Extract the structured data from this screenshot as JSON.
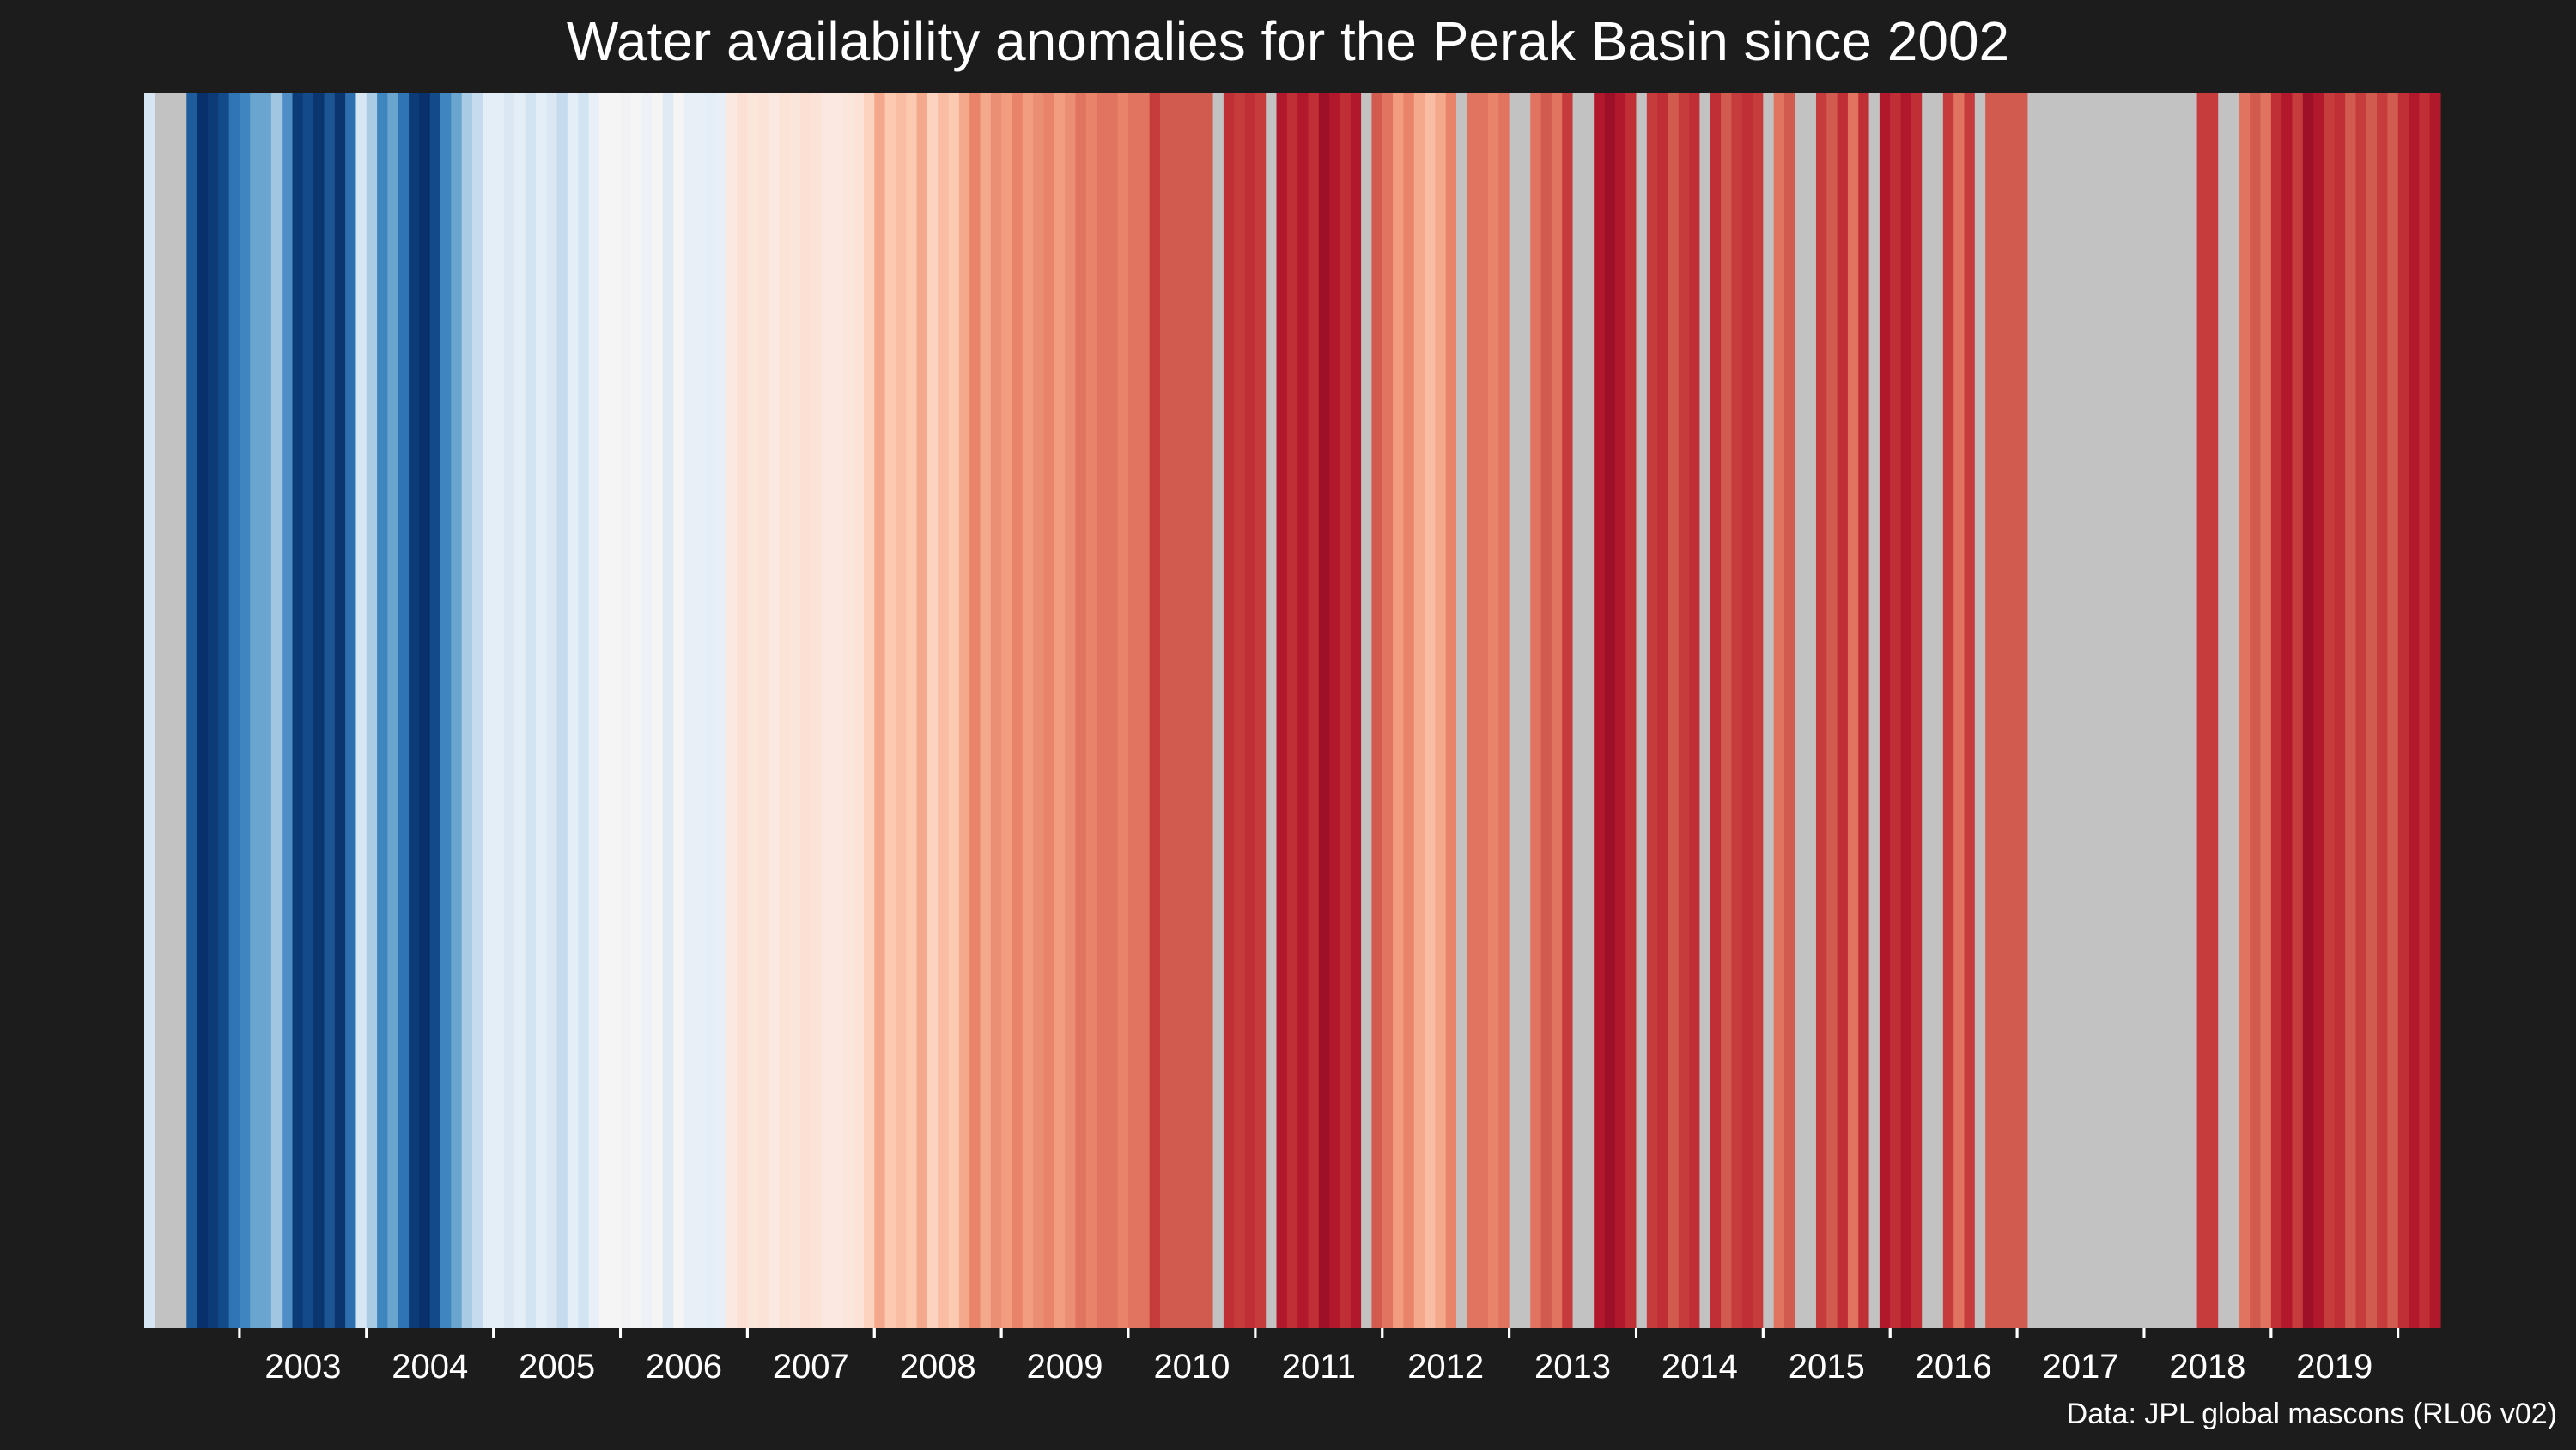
{
  "chart_data": {
    "type": "heatmap",
    "title": "Water availability anomalies for the Perak Basin since 2002",
    "caption": "Data: JPL global mascons (RL06 v02)",
    "xlabel": "",
    "ylabel": "",
    "x_start": "2002-04",
    "x_end": "2020-05",
    "x_ticks": [
      "2003",
      "2004",
      "2005",
      "2006",
      "2007",
      "2008",
      "2009",
      "2010",
      "2011",
      "2012",
      "2013",
      "2014",
      "2015",
      "2016",
      "2017",
      "2018",
      "2019"
    ],
    "missing_color": "#c2c2c2",
    "palette_low": "#08306b",
    "palette_high": "#8b0f23",
    "grid": false,
    "legend": "none",
    "stripes": [
      {
        "start": "2002-04",
        "end": "2002-05",
        "color": "#d6e6f3"
      },
      {
        "start": "2002-05",
        "end": "2002-06",
        "color": "#c2c2c2"
      },
      {
        "start": "2002-06",
        "end": "2002-08",
        "color": "#c2c2c2"
      },
      {
        "start": "2002-08",
        "end": "2002-09",
        "color": "#1f5c9c"
      },
      {
        "start": "2002-09",
        "end": "2002-10",
        "color": "#08306b"
      },
      {
        "start": "2002-10",
        "end": "2002-11",
        "color": "#0c3b78"
      },
      {
        "start": "2002-11",
        "end": "2002-12",
        "color": "#134a8a"
      },
      {
        "start": "2002-12",
        "end": "2003-01",
        "color": "#2f74b5"
      },
      {
        "start": "2003-01",
        "end": "2003-02",
        "color": "#3f86c1"
      },
      {
        "start": "2003-02",
        "end": "2003-03",
        "color": "#6aa5d0"
      },
      {
        "start": "2003-03",
        "end": "2003-04",
        "color": "#6aa5d0"
      },
      {
        "start": "2003-04",
        "end": "2003-05",
        "color": "#a0c6e2"
      },
      {
        "start": "2003-05",
        "end": "2003-06",
        "color": "#4f8fc6"
      },
      {
        "start": "2003-06",
        "end": "2003-07",
        "color": "#0c3b78"
      },
      {
        "start": "2003-07",
        "end": "2003-08",
        "color": "#134a8a"
      },
      {
        "start": "2003-08",
        "end": "2003-09",
        "color": "#0a356f"
      },
      {
        "start": "2003-09",
        "end": "2003-10",
        "color": "#1b5593"
      },
      {
        "start": "2003-10",
        "end": "2003-11",
        "color": "#0a356f"
      },
      {
        "start": "2003-11",
        "end": "2003-12",
        "color": "#2e6fb0"
      },
      {
        "start": "2003-12",
        "end": "2004-01",
        "color": "#d6e6f3"
      },
      {
        "start": "2004-01",
        "end": "2004-02",
        "color": "#a9cbe4"
      },
      {
        "start": "2004-02",
        "end": "2004-03",
        "color": "#3f86c1"
      },
      {
        "start": "2004-03",
        "end": "2004-04",
        "color": "#6aa5d0"
      },
      {
        "start": "2004-04",
        "end": "2004-05",
        "color": "#2f74b5"
      },
      {
        "start": "2004-05",
        "end": "2004-06",
        "color": "#0c3b78"
      },
      {
        "start": "2004-06",
        "end": "2004-07",
        "color": "#08306b"
      },
      {
        "start": "2004-07",
        "end": "2004-08",
        "color": "#134a8a"
      },
      {
        "start": "2004-08",
        "end": "2004-09",
        "color": "#3f86c1"
      },
      {
        "start": "2004-09",
        "end": "2004-10",
        "color": "#6aa5d0"
      },
      {
        "start": "2004-10",
        "end": "2004-11",
        "color": "#a9cbe4"
      },
      {
        "start": "2004-11",
        "end": "2004-12",
        "color": "#c6dcee"
      },
      {
        "start": "2004-12",
        "end": "2005-01",
        "color": "#e4eef6"
      },
      {
        "start": "2005-01",
        "end": "2005-02",
        "color": "#e4eef6"
      },
      {
        "start": "2005-02",
        "end": "2005-03",
        "color": "#dbe8f3"
      },
      {
        "start": "2005-03",
        "end": "2005-04",
        "color": "#e4eef6"
      },
      {
        "start": "2005-04",
        "end": "2005-05",
        "color": "#d2e3f1"
      },
      {
        "start": "2005-05",
        "end": "2005-06",
        "color": "#e4eef6"
      },
      {
        "start": "2005-06",
        "end": "2005-07",
        "color": "#dbe8f3"
      },
      {
        "start": "2005-07",
        "end": "2005-08",
        "color": "#c6dcee"
      },
      {
        "start": "2005-08",
        "end": "2005-09",
        "color": "#e4eef6"
      },
      {
        "start": "2005-09",
        "end": "2005-10",
        "color": "#d2e3f1"
      },
      {
        "start": "2005-10",
        "end": "2005-11",
        "color": "#e8eff6"
      },
      {
        "start": "2005-11",
        "end": "2005-12",
        "color": "#f5f5f5"
      },
      {
        "start": "2005-12",
        "end": "2006-01",
        "color": "#f5f5f5"
      },
      {
        "start": "2006-01",
        "end": "2006-02",
        "color": "#f2f2f4"
      },
      {
        "start": "2006-02",
        "end": "2006-03",
        "color": "#f5f5f5"
      },
      {
        "start": "2006-03",
        "end": "2006-04",
        "color": "#eef2f6"
      },
      {
        "start": "2006-04",
        "end": "2006-05",
        "color": "#f5f5f5"
      },
      {
        "start": "2006-05",
        "end": "2006-06",
        "color": "#dfeaf4"
      },
      {
        "start": "2006-06",
        "end": "2006-07",
        "color": "#f5f5f5"
      },
      {
        "start": "2006-07",
        "end": "2006-08",
        "color": "#e8eff6"
      },
      {
        "start": "2006-08",
        "end": "2006-09",
        "color": "#e8eff6"
      },
      {
        "start": "2006-09",
        "end": "2006-10",
        "color": "#e4eef6"
      },
      {
        "start": "2006-10",
        "end": "2006-11",
        "color": "#e8eff6"
      },
      {
        "start": "2006-11",
        "end": "2006-12",
        "color": "#fbe9e1"
      },
      {
        "start": "2006-12",
        "end": "2007-01",
        "color": "#fce0d3"
      },
      {
        "start": "2007-01",
        "end": "2007-02",
        "color": "#fbe6dc"
      },
      {
        "start": "2007-02",
        "end": "2007-03",
        "color": "#fce3d8"
      },
      {
        "start": "2007-03",
        "end": "2007-04",
        "color": "#fbe9e1"
      },
      {
        "start": "2007-04",
        "end": "2007-05",
        "color": "#fce3d8"
      },
      {
        "start": "2007-05",
        "end": "2007-06",
        "color": "#fbe6dc"
      },
      {
        "start": "2007-06",
        "end": "2007-07",
        "color": "#fce0d3"
      },
      {
        "start": "2007-07",
        "end": "2007-08",
        "color": "#fce3d8"
      },
      {
        "start": "2007-08",
        "end": "2007-09",
        "color": "#fbe9e1"
      },
      {
        "start": "2007-09",
        "end": "2007-10",
        "color": "#fbe9e1"
      },
      {
        "start": "2007-10",
        "end": "2007-11",
        "color": "#fbe6dc"
      },
      {
        "start": "2007-11",
        "end": "2007-12",
        "color": "#fce3d8"
      },
      {
        "start": "2007-12",
        "end": "2008-01",
        "color": "#fcd3bf"
      },
      {
        "start": "2008-01",
        "end": "2008-02",
        "color": "#f4a98c"
      },
      {
        "start": "2008-02",
        "end": "2008-03",
        "color": "#fcc9b1"
      },
      {
        "start": "2008-03",
        "end": "2008-04",
        "color": "#f8bda2"
      },
      {
        "start": "2008-04",
        "end": "2008-05",
        "color": "#fcc9b1"
      },
      {
        "start": "2008-05",
        "end": "2008-06",
        "color": "#f4a98c"
      },
      {
        "start": "2008-06",
        "end": "2008-07",
        "color": "#fcd3bf"
      },
      {
        "start": "2008-07",
        "end": "2008-08",
        "color": "#f8bda2"
      },
      {
        "start": "2008-08",
        "end": "2008-09",
        "color": "#fcc9b1"
      },
      {
        "start": "2008-09",
        "end": "2008-10",
        "color": "#f4a98c"
      },
      {
        "start": "2008-10",
        "end": "2008-11",
        "color": "#e9836a"
      },
      {
        "start": "2008-11",
        "end": "2008-12",
        "color": "#f4a98c"
      },
      {
        "start": "2008-12",
        "end": "2009-01",
        "color": "#ea8f74"
      },
      {
        "start": "2009-01",
        "end": "2009-02",
        "color": "#f29c80"
      },
      {
        "start": "2009-02",
        "end": "2009-03",
        "color": "#e9836a"
      },
      {
        "start": "2009-03",
        "end": "2009-04",
        "color": "#f29c80"
      },
      {
        "start": "2009-04",
        "end": "2009-05",
        "color": "#ea8f74"
      },
      {
        "start": "2009-05",
        "end": "2009-06",
        "color": "#e9836a"
      },
      {
        "start": "2009-06",
        "end": "2009-07",
        "color": "#f29c80"
      },
      {
        "start": "2009-07",
        "end": "2009-08",
        "color": "#ea8f74"
      },
      {
        "start": "2009-08",
        "end": "2009-09",
        "color": "#e07460"
      },
      {
        "start": "2009-09",
        "end": "2009-10",
        "color": "#e9836a"
      },
      {
        "start": "2009-10",
        "end": "2009-11",
        "color": "#e07460"
      },
      {
        "start": "2009-11",
        "end": "2009-12",
        "color": "#e07460"
      },
      {
        "start": "2009-12",
        "end": "2010-01",
        "color": "#e9836a"
      },
      {
        "start": "2010-01",
        "end": "2010-02",
        "color": "#e07460"
      },
      {
        "start": "2010-02",
        "end": "2010-03",
        "color": "#e07460"
      },
      {
        "start": "2010-03",
        "end": "2010-04",
        "color": "#c63c3c"
      },
      {
        "start": "2010-04",
        "end": "2010-05",
        "color": "#d25b4f"
      },
      {
        "start": "2010-05",
        "end": "2010-06",
        "color": "#d25b4f"
      },
      {
        "start": "2010-06",
        "end": "2010-07",
        "color": "#d25b4f"
      },
      {
        "start": "2010-07",
        "end": "2010-08",
        "color": "#d25b4f"
      },
      {
        "start": "2010-08",
        "end": "2010-09",
        "color": "#d25b4f"
      },
      {
        "start": "2010-09",
        "end": "2010-10",
        "color": "#c2c2c2"
      },
      {
        "start": "2010-10",
        "end": "2010-11",
        "color": "#c02f36"
      },
      {
        "start": "2010-11",
        "end": "2010-12",
        "color": "#c63c3c"
      },
      {
        "start": "2010-12",
        "end": "2011-01",
        "color": "#c02f36"
      },
      {
        "start": "2011-01",
        "end": "2011-02",
        "color": "#c63c3c"
      },
      {
        "start": "2011-02",
        "end": "2011-03",
        "color": "#c2c2c2"
      },
      {
        "start": "2011-03",
        "end": "2011-04",
        "color": "#b2182b"
      },
      {
        "start": "2011-04",
        "end": "2011-05",
        "color": "#c02f36"
      },
      {
        "start": "2011-05",
        "end": "2011-06",
        "color": "#b2182b"
      },
      {
        "start": "2011-06",
        "end": "2011-07",
        "color": "#c02f36"
      },
      {
        "start": "2011-07",
        "end": "2011-08",
        "color": "#9e1027"
      },
      {
        "start": "2011-08",
        "end": "2011-09",
        "color": "#b2182b"
      },
      {
        "start": "2011-09",
        "end": "2011-10",
        "color": "#c02f36"
      },
      {
        "start": "2011-10",
        "end": "2011-11",
        "color": "#b2182b"
      },
      {
        "start": "2011-11",
        "end": "2011-12",
        "color": "#c2c2c2"
      },
      {
        "start": "2011-12",
        "end": "2012-01",
        "color": "#d25b4f"
      },
      {
        "start": "2012-01",
        "end": "2012-02",
        "color": "#e07460"
      },
      {
        "start": "2012-02",
        "end": "2012-03",
        "color": "#f29c80"
      },
      {
        "start": "2012-03",
        "end": "2012-04",
        "color": "#e9836a"
      },
      {
        "start": "2012-04",
        "end": "2012-05",
        "color": "#f4a98c"
      },
      {
        "start": "2012-05",
        "end": "2012-06",
        "color": "#f8bda2"
      },
      {
        "start": "2012-06",
        "end": "2012-07",
        "color": "#f4a98c"
      },
      {
        "start": "2012-07",
        "end": "2012-08",
        "color": "#e9836a"
      },
      {
        "start": "2012-08",
        "end": "2012-09",
        "color": "#c2c2c2"
      },
      {
        "start": "2012-09",
        "end": "2012-10",
        "color": "#e07460"
      },
      {
        "start": "2012-10",
        "end": "2012-11",
        "color": "#e07460"
      },
      {
        "start": "2012-11",
        "end": "2012-12",
        "color": "#e9836a"
      },
      {
        "start": "2012-12",
        "end": "2013-01",
        "color": "#e07460"
      },
      {
        "start": "2013-01",
        "end": "2013-02",
        "color": "#c2c2c2"
      },
      {
        "start": "2013-02",
        "end": "2013-03",
        "color": "#c2c2c2"
      },
      {
        "start": "2013-03",
        "end": "2013-04",
        "color": "#e07460"
      },
      {
        "start": "2013-04",
        "end": "2013-05",
        "color": "#d25b4f"
      },
      {
        "start": "2013-05",
        "end": "2013-06",
        "color": "#e07460"
      },
      {
        "start": "2013-06",
        "end": "2013-07",
        "color": "#c63c3c"
      },
      {
        "start": "2013-07",
        "end": "2013-08",
        "color": "#c2c2c2"
      },
      {
        "start": "2013-08",
        "end": "2013-09",
        "color": "#c2c2c2"
      },
      {
        "start": "2013-09",
        "end": "2013-10",
        "color": "#b2182b"
      },
      {
        "start": "2013-10",
        "end": "2013-11",
        "color": "#9e1027"
      },
      {
        "start": "2013-11",
        "end": "2013-12",
        "color": "#b2182b"
      },
      {
        "start": "2013-12",
        "end": "2014-01",
        "color": "#c02f36"
      },
      {
        "start": "2014-01",
        "end": "2014-02",
        "color": "#c2c2c2"
      },
      {
        "start": "2014-02",
        "end": "2014-03",
        "color": "#c63c3c"
      },
      {
        "start": "2014-03",
        "end": "2014-04",
        "color": "#c02f36"
      },
      {
        "start": "2014-04",
        "end": "2014-05",
        "color": "#d25b4f"
      },
      {
        "start": "2014-05",
        "end": "2014-06",
        "color": "#c63c3c"
      },
      {
        "start": "2014-06",
        "end": "2014-07",
        "color": "#c02f36"
      },
      {
        "start": "2014-07",
        "end": "2014-08",
        "color": "#c2c2c2"
      },
      {
        "start": "2014-08",
        "end": "2014-09",
        "color": "#c02f36"
      },
      {
        "start": "2014-09",
        "end": "2014-10",
        "color": "#d25b4f"
      },
      {
        "start": "2014-10",
        "end": "2014-11",
        "color": "#c63c3c"
      },
      {
        "start": "2014-11",
        "end": "2014-12",
        "color": "#c02f36"
      },
      {
        "start": "2014-12",
        "end": "2015-01",
        "color": "#c63c3c"
      },
      {
        "start": "2015-01",
        "end": "2015-02",
        "color": "#c2c2c2"
      },
      {
        "start": "2015-02",
        "end": "2015-03",
        "color": "#e07460"
      },
      {
        "start": "2015-03",
        "end": "2015-04",
        "color": "#d25b4f"
      },
      {
        "start": "2015-04",
        "end": "2015-05",
        "color": "#c2c2c2"
      },
      {
        "start": "2015-05",
        "end": "2015-06",
        "color": "#c2c2c2"
      },
      {
        "start": "2015-06",
        "end": "2015-07",
        "color": "#c63c3c"
      },
      {
        "start": "2015-07",
        "end": "2015-08",
        "color": "#d25b4f"
      },
      {
        "start": "2015-08",
        "end": "2015-09",
        "color": "#c02f36"
      },
      {
        "start": "2015-09",
        "end": "2015-10",
        "color": "#e07460"
      },
      {
        "start": "2015-10",
        "end": "2015-11",
        "color": "#c02f36"
      },
      {
        "start": "2015-11",
        "end": "2015-12",
        "color": "#c2c2c2"
      },
      {
        "start": "2015-12",
        "end": "2016-01",
        "color": "#b2182b"
      },
      {
        "start": "2016-01",
        "end": "2016-02",
        "color": "#c02f36"
      },
      {
        "start": "2016-02",
        "end": "2016-03",
        "color": "#b2182b"
      },
      {
        "start": "2016-03",
        "end": "2016-04",
        "color": "#c02f36"
      },
      {
        "start": "2016-04",
        "end": "2016-05",
        "color": "#c2c2c2"
      },
      {
        "start": "2016-05",
        "end": "2016-06",
        "color": "#c2c2c2"
      },
      {
        "start": "2016-06",
        "end": "2016-07",
        "color": "#c63c3c"
      },
      {
        "start": "2016-07",
        "end": "2016-08",
        "color": "#e07460"
      },
      {
        "start": "2016-08",
        "end": "2016-09",
        "color": "#c63c3c"
      },
      {
        "start": "2016-09",
        "end": "2016-10",
        "color": "#c2c2c2"
      },
      {
        "start": "2016-10",
        "end": "2016-11",
        "color": "#d25b4f"
      },
      {
        "start": "2016-11",
        "end": "2017-02",
        "color": "#d25b4f"
      },
      {
        "start": "2017-02",
        "end": "2018-06",
        "color": "#c2c2c2"
      },
      {
        "start": "2018-06",
        "end": "2018-08",
        "color": "#c63c3c"
      },
      {
        "start": "2018-08",
        "end": "2018-10",
        "color": "#c2c2c2"
      },
      {
        "start": "2018-10",
        "end": "2018-11",
        "color": "#e07460"
      },
      {
        "start": "2018-11",
        "end": "2018-12",
        "color": "#d25b4f"
      },
      {
        "start": "2018-12",
        "end": "2019-01",
        "color": "#e07460"
      },
      {
        "start": "2019-01",
        "end": "2019-02",
        "color": "#c02f36"
      },
      {
        "start": "2019-02",
        "end": "2019-03",
        "color": "#b2182b"
      },
      {
        "start": "2019-03",
        "end": "2019-04",
        "color": "#c63c3c"
      },
      {
        "start": "2019-04",
        "end": "2019-05",
        "color": "#9e1027"
      },
      {
        "start": "2019-05",
        "end": "2019-06",
        "color": "#b2182b"
      },
      {
        "start": "2019-06",
        "end": "2019-07",
        "color": "#c63c3c"
      },
      {
        "start": "2019-07",
        "end": "2019-08",
        "color": "#c02f36"
      },
      {
        "start": "2019-08",
        "end": "2019-09",
        "color": "#d25b4f"
      },
      {
        "start": "2019-09",
        "end": "2019-10",
        "color": "#c63c3c"
      },
      {
        "start": "2019-10",
        "end": "2019-11",
        "color": "#d25b4f"
      },
      {
        "start": "2019-11",
        "end": "2019-12",
        "color": "#c63c3c"
      },
      {
        "start": "2019-12",
        "end": "2020-01",
        "color": "#d25b4f"
      },
      {
        "start": "2020-01",
        "end": "2020-02",
        "color": "#c02f36"
      },
      {
        "start": "2020-02",
        "end": "2020-03",
        "color": "#b2182b"
      },
      {
        "start": "2020-03",
        "end": "2020-04",
        "color": "#c02f36"
      },
      {
        "start": "2020-04",
        "end": "2020-05",
        "color": "#b2182b"
      }
    ]
  }
}
